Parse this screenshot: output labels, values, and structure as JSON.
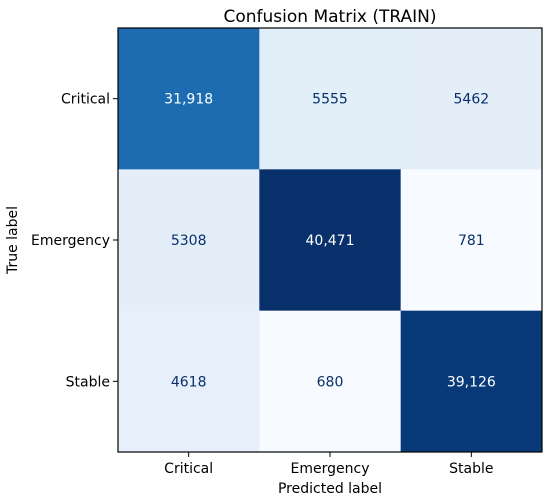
{
  "chart_data": {
    "type": "heatmap",
    "title": "Confusion Matrix (TRAIN)",
    "xlabel": "Predicted label",
    "ylabel": "True label",
    "x_categories": [
      "Critical",
      "Emergency",
      "Stable"
    ],
    "y_categories": [
      "Critical",
      "Emergency",
      "Stable"
    ],
    "values": [
      [
        31918,
        5555,
        5462
      ],
      [
        5308,
        40471,
        781
      ],
      [
        4618,
        680,
        39126
      ]
    ],
    "cell_labels": [
      [
        "31,918",
        "5555",
        "5462"
      ],
      [
        "5308",
        "40,471",
        "781"
      ],
      [
        "4618",
        "680",
        "39,126"
      ]
    ],
    "colormap": "Blues",
    "vmin": 680,
    "vmax": 40471,
    "text_color_light": "#ffffff",
    "text_color_dark": "#08306b",
    "grid": false,
    "colorbar": false
  }
}
